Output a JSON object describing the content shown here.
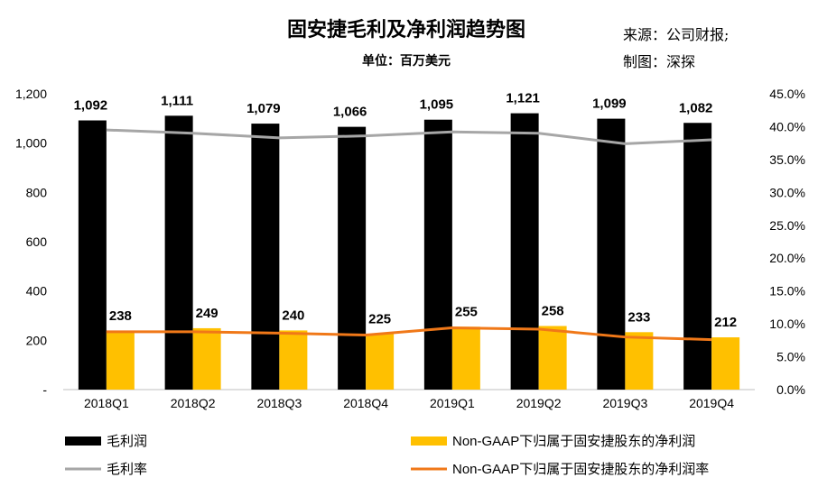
{
  "header": {
    "title": "固安捷毛利及净利润趋势图",
    "unit": "单位：百万美元",
    "source": "来源：公司财报;",
    "author": "制图：深探"
  },
  "chart_data": {
    "type": "bar+line",
    "title": "固安捷毛利及净利润趋势图",
    "subtitle": "单位：百万美元",
    "categories": [
      "2018Q1",
      "2018Q2",
      "2018Q3",
      "2018Q4",
      "2019Q1",
      "2019Q2",
      "2019Q3",
      "2019Q4"
    ],
    "y_left": {
      "range": [
        0,
        1200
      ],
      "ticks": [
        "-",
        "200",
        "400",
        "600",
        "800",
        "1,000",
        "1,200"
      ]
    },
    "y_right": {
      "range": [
        0,
        45
      ],
      "ticks": [
        "0.0%",
        "5.0%",
        "10.0%",
        "15.0%",
        "20.0%",
        "25.0%",
        "30.0%",
        "35.0%",
        "40.0%",
        "45.0%"
      ]
    },
    "grid": false,
    "legend_position": "bottom",
    "series": [
      {
        "name": "毛利润",
        "type": "bar",
        "axis": "left",
        "color": "#000000",
        "values": [
          1092,
          1111,
          1079,
          1066,
          1095,
          1121,
          1099,
          1082
        ],
        "labels": [
          "1,092",
          "1,111",
          "1,079",
          "1,066",
          "1,095",
          "1,121",
          "1,099",
          "1,082"
        ]
      },
      {
        "name": "Non-GAAP下归属于固安捷股东的净利润",
        "type": "bar",
        "axis": "left",
        "color": "#FFC000",
        "values": [
          238,
          249,
          240,
          225,
          255,
          258,
          233,
          212
        ],
        "labels": [
          "238",
          "249",
          "240",
          "225",
          "255",
          "258",
          "233",
          "212"
        ]
      },
      {
        "name": "毛利率",
        "type": "line",
        "axis": "right",
        "color": "#A6A6A6",
        "values": [
          39.5,
          39.0,
          38.3,
          38.6,
          39.2,
          39.0,
          37.4,
          38.0
        ]
      },
      {
        "name": "Non-GAAP下归属于固安捷股东的净利润率",
        "type": "line",
        "axis": "right",
        "color": "#F07818",
        "values": [
          8.8,
          8.8,
          8.6,
          8.3,
          9.4,
          9.2,
          8.0,
          7.6
        ]
      }
    ]
  }
}
